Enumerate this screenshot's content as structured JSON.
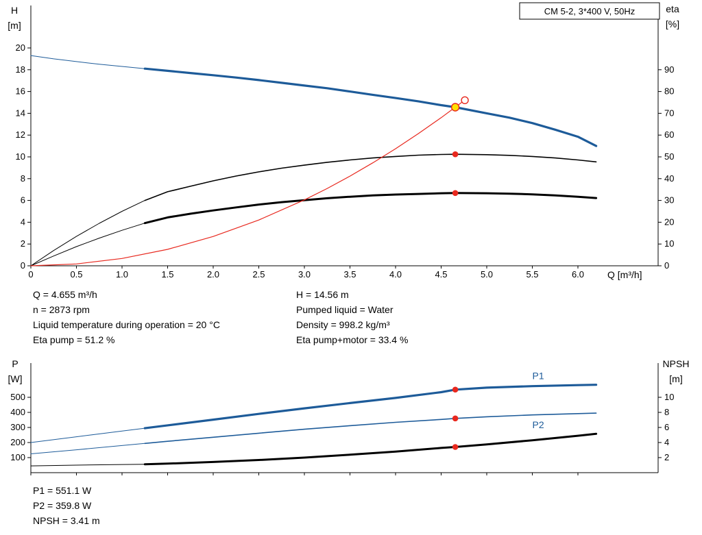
{
  "top_chart_info": {
    "left": [
      "Q = 4.655 m³/h",
      "n = 2873 rpm",
      "Liquid temperature during operation = 20 °C",
      "Eta pump = 51.2 %"
    ],
    "right": [
      "H = 14.56 m",
      "Pumped liquid = Water",
      "Density = 998.2 kg/m³",
      "Eta pump+motor = 33.4 %"
    ]
  },
  "bottom_chart_info": [
    "P1 = 551.1 W",
    "P2 = 359.8 W",
    "NPSH = 3.41 m"
  ],
  "colors": {
    "curve_blue": "#1d5b99",
    "marker_red": "#e8281e",
    "duty_yellow": "#ffe000",
    "curve_black": "#000000"
  },
  "chart_data": [
    {
      "type": "line",
      "id": "top",
      "title": "CM 5-2, 3*400 V, 50Hz",
      "x_axis": {
        "label": "Q [m³/h]",
        "min": 0,
        "max": 6.88,
        "ticks": [
          0,
          0.5,
          1,
          1.5,
          2,
          2.5,
          3,
          3.5,
          4,
          4.5,
          5,
          5.5,
          6
        ],
        "tick_labels": [
          "0",
          "0.5",
          "1.0",
          "1.5",
          "2.0",
          "2.5",
          "3.0",
          "3.5",
          "4.0",
          "4.5",
          "5.0",
          "5.5",
          "6.0"
        ]
      },
      "y_left": {
        "label_lines": [
          "H",
          "[m]"
        ],
        "min": 0,
        "max": 20,
        "ticks": [
          0,
          2,
          4,
          6,
          8,
          10,
          12,
          14,
          16,
          18,
          20
        ],
        "tick_labels": [
          "0",
          "2",
          "4",
          "6",
          "8",
          "10",
          "12",
          "14",
          "16",
          "18",
          "20"
        ]
      },
      "y_right": {
        "label_lines": [
          "eta",
          "[%]"
        ],
        "min": 0,
        "max": 100,
        "ticks": [
          0,
          10,
          20,
          30,
          40,
          50,
          60,
          70,
          80,
          90
        ],
        "tick_labels": [
          "0",
          "10",
          "20",
          "30",
          "40",
          "50",
          "60",
          "70",
          "80",
          "90"
        ]
      },
      "series": [
        {
          "name": "pump-curve-h-q",
          "axis": "left",
          "color": "#1d5b99",
          "w_thin": 1,
          "w_thick": 3.2,
          "thick_from": 1.25,
          "points": [
            [
              0,
              19.3
            ],
            [
              0.25,
              19.0
            ],
            [
              0.5,
              18.75
            ],
            [
              0.75,
              18.5
            ],
            [
              1.0,
              18.3
            ],
            [
              1.25,
              18.1
            ],
            [
              1.5,
              17.9
            ],
            [
              1.75,
              17.7
            ],
            [
              2.0,
              17.5
            ],
            [
              2.25,
              17.28
            ],
            [
              2.5,
              17.05
            ],
            [
              2.75,
              16.8
            ],
            [
              3.0,
              16.55
            ],
            [
              3.25,
              16.3
            ],
            [
              3.5,
              16.0
            ],
            [
              3.75,
              15.7
            ],
            [
              4.0,
              15.4
            ],
            [
              4.25,
              15.1
            ],
            [
              4.5,
              14.75
            ],
            [
              4.655,
              14.56
            ],
            [
              5.0,
              14.0
            ],
            [
              5.25,
              13.6
            ],
            [
              5.5,
              13.1
            ],
            [
              5.75,
              12.5
            ],
            [
              6.0,
              11.85
            ],
            [
              6.2,
              11.0
            ]
          ]
        },
        {
          "name": "eta-pump-curve",
          "axis": "right",
          "color": "#000000",
          "w_thin": 1,
          "w_thick": 1.6,
          "thick_from": 1.25,
          "points": [
            [
              0,
              0
            ],
            [
              0.25,
              7
            ],
            [
              0.5,
              13.5
            ],
            [
              0.75,
              19.5
            ],
            [
              1.0,
              25
            ],
            [
              1.25,
              30
            ],
            [
              1.5,
              34
            ],
            [
              1.75,
              36.5
            ],
            [
              2.0,
              39
            ],
            [
              2.25,
              41.2
            ],
            [
              2.5,
              43.1
            ],
            [
              2.75,
              44.8
            ],
            [
              3.0,
              46.2
            ],
            [
              3.25,
              47.5
            ],
            [
              3.5,
              48.6
            ],
            [
              3.75,
              49.5
            ],
            [
              4.0,
              50.2
            ],
            [
              4.25,
              50.8
            ],
            [
              4.5,
              51.1
            ],
            [
              4.655,
              51.2
            ],
            [
              5.0,
              51.0
            ],
            [
              5.25,
              50.7
            ],
            [
              5.5,
              50.2
            ],
            [
              5.75,
              49.5
            ],
            [
              6.0,
              48.6
            ],
            [
              6.2,
              47.7
            ]
          ]
        },
        {
          "name": "eta-pump-motor-curve",
          "axis": "right",
          "color": "#000000",
          "w_thin": 1,
          "w_thick": 3,
          "thick_from": 1.25,
          "points": [
            [
              0,
              0
            ],
            [
              0.25,
              4.5
            ],
            [
              0.5,
              8.8
            ],
            [
              0.75,
              12.7
            ],
            [
              1.0,
              16.3
            ],
            [
              1.25,
              19.6
            ],
            [
              1.5,
              22.2
            ],
            [
              1.75,
              23.9
            ],
            [
              2.0,
              25.4
            ],
            [
              2.25,
              26.8
            ],
            [
              2.5,
              28.1
            ],
            [
              2.75,
              29.2
            ],
            [
              3.0,
              30.1
            ],
            [
              3.25,
              31.0
            ],
            [
              3.5,
              31.7
            ],
            [
              3.75,
              32.3
            ],
            [
              4.0,
              32.7
            ],
            [
              4.25,
              33.0
            ],
            [
              4.5,
              33.3
            ],
            [
              4.655,
              33.4
            ],
            [
              5.0,
              33.3
            ],
            [
              5.25,
              33.1
            ],
            [
              5.5,
              32.8
            ],
            [
              5.75,
              32.3
            ],
            [
              6.0,
              31.7
            ],
            [
              6.2,
              31.1
            ]
          ]
        },
        {
          "name": "system-curve",
          "axis": "left",
          "color": "#e8281e",
          "w_thin": 1.2,
          "w_thick": 1.2,
          "thick_from": 0,
          "points": [
            [
              0,
              0
            ],
            [
              0.5,
              0.17
            ],
            [
              1.0,
              0.67
            ],
            [
              1.5,
              1.51
            ],
            [
              2.0,
              2.69
            ],
            [
              2.5,
              4.2
            ],
            [
              3.0,
              6.05
            ],
            [
              3.25,
              7.1
            ],
            [
              3.5,
              8.23
            ],
            [
              3.75,
              9.45
            ],
            [
              4.0,
              10.75
            ],
            [
              4.25,
              12.14
            ],
            [
              4.5,
              13.6
            ],
            [
              4.655,
              14.56
            ],
            [
              4.73,
              15.03
            ]
          ]
        }
      ],
      "markers": [
        {
          "name": "duty-point",
          "axis": "left",
          "q": 4.655,
          "v": 14.56,
          "style": "duty",
          "fill": "#ffe000",
          "stroke": "#e8281e"
        },
        {
          "name": "system-curve-end-point",
          "axis": "left",
          "q": 4.76,
          "v": 15.2,
          "style": "open",
          "stroke": "#e8281e"
        },
        {
          "name": "eta-pump-point",
          "axis": "right",
          "q": 4.655,
          "v": 51.2,
          "style": "dot",
          "fill": "#e8281e"
        },
        {
          "name": "eta-pump-motor-point",
          "axis": "right",
          "q": 4.655,
          "v": 33.4,
          "style": "dot",
          "fill": "#e8281e"
        }
      ]
    },
    {
      "type": "line",
      "id": "bottom",
      "x_axis": {
        "min": 0,
        "max": 6.88,
        "ticks": [
          0,
          0.5,
          1,
          1.5,
          2,
          2.5,
          3,
          3.5,
          4,
          4.5,
          5,
          5.5,
          6
        ],
        "tick_labels": []
      },
      "y_left": {
        "label_lines": [
          "P",
          "[W]"
        ],
        "min": 0,
        "max": 700,
        "ticks": [
          100,
          200,
          300,
          400,
          500
        ],
        "tick_labels": [
          "100",
          "200",
          "300",
          "400",
          "500"
        ]
      },
      "y_right": {
        "label_lines": [
          "NPSH",
          "[m]"
        ],
        "min": 0,
        "max": 14,
        "ticks": [
          2,
          4,
          6,
          8,
          10
        ],
        "tick_labels": [
          "2",
          "4",
          "6",
          "8",
          "10"
        ]
      },
      "series": [
        {
          "name": "p1-curve",
          "axis": "left",
          "color": "#1d5b99",
          "w_thin": 1,
          "w_thick": 3.2,
          "thick_from": 1.25,
          "points": [
            [
              0,
              200
            ],
            [
              0.5,
              238
            ],
            [
              1.0,
              276
            ],
            [
              1.25,
              295
            ],
            [
              1.5,
              314
            ],
            [
              2.0,
              352
            ],
            [
              2.5,
              390
            ],
            [
              3.0,
              427
            ],
            [
              3.5,
              462
            ],
            [
              4.0,
              496
            ],
            [
              4.5,
              534
            ],
            [
              4.655,
              551
            ],
            [
              5.0,
              564
            ],
            [
              5.5,
              574
            ],
            [
              6.0,
              581
            ],
            [
              6.2,
              583
            ]
          ]
        },
        {
          "name": "p2-curve",
          "axis": "left",
          "color": "#1d5b99",
          "w_thin": 1,
          "w_thick": 1.6,
          "thick_from": 1.25,
          "points": [
            [
              0,
              125
            ],
            [
              0.5,
              152
            ],
            [
              1.0,
              180
            ],
            [
              1.25,
              194
            ],
            [
              1.5,
              208
            ],
            [
              2.0,
              235
            ],
            [
              2.5,
              262
            ],
            [
              3.0,
              288
            ],
            [
              3.5,
              312
            ],
            [
              4.0,
              334
            ],
            [
              4.5,
              353
            ],
            [
              4.655,
              360
            ],
            [
              5.0,
              371
            ],
            [
              5.5,
              383
            ],
            [
              6.0,
              392
            ],
            [
              6.2,
              395
            ]
          ]
        },
        {
          "name": "npsh-curve",
          "axis": "right",
          "color": "#000000",
          "w_thin": 1,
          "w_thick": 3,
          "thick_from": 1.25,
          "points": [
            [
              0,
              0.9
            ],
            [
              0.5,
              1.0
            ],
            [
              1.0,
              1.08
            ],
            [
              1.25,
              1.12
            ],
            [
              1.5,
              1.2
            ],
            [
              2.0,
              1.42
            ],
            [
              2.5,
              1.68
            ],
            [
              3.0,
              2.0
            ],
            [
              3.5,
              2.38
            ],
            [
              4.0,
              2.8
            ],
            [
              4.5,
              3.28
            ],
            [
              4.655,
              3.41
            ],
            [
              5.0,
              3.75
            ],
            [
              5.5,
              4.3
            ],
            [
              6.0,
              4.9
            ],
            [
              6.2,
              5.15
            ]
          ]
        }
      ],
      "curve_labels": [
        {
          "text": "P1",
          "axis": "left",
          "q": 5.5,
          "v": 620,
          "color": "#1d5b99"
        },
        {
          "text": "P2",
          "axis": "left",
          "q": 5.5,
          "v": 295,
          "color": "#1d5b99"
        }
      ],
      "markers": [
        {
          "name": "p1-point",
          "axis": "left",
          "q": 4.655,
          "v": 551.1,
          "style": "dot",
          "fill": "#e8281e"
        },
        {
          "name": "p2-point",
          "axis": "left",
          "q": 4.655,
          "v": 359.8,
          "style": "dot",
          "fill": "#e8281e"
        },
        {
          "name": "npsh-point",
          "axis": "right",
          "q": 4.655,
          "v": 3.41,
          "style": "dot",
          "fill": "#e8281e"
        }
      ]
    }
  ]
}
